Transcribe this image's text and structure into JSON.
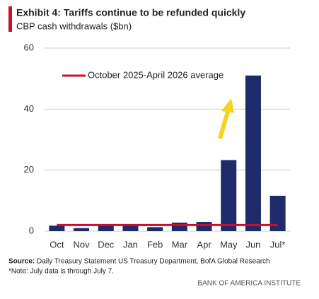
{
  "chart_data": {
    "type": "bar",
    "title": "Exhibit 4: Tariffs continue to be refunded quickly",
    "subtitle": "CBP cash withdrawals ($bn)",
    "categories": [
      "Oct",
      "Nov",
      "Dec",
      "Jan",
      "Feb",
      "Mar",
      "Apr",
      "May",
      "Jun",
      "Jul*"
    ],
    "values": [
      1.8,
      1.0,
      1.8,
      1.8,
      1.3,
      2.8,
      3.0,
      23.3,
      51.0,
      11.6
    ],
    "color": "#1f2a6b",
    "ylim": [
      0,
      60
    ],
    "yticks": [
      0,
      20,
      40,
      60
    ],
    "grid": true,
    "reference_line": {
      "name": "October 2025-April 2026 average",
      "value": 2.0,
      "color": "#c8102e"
    },
    "source_label": "Source:",
    "source": "Daily Treasury Statement US Treasury Department, BofA Global Research",
    "note": "*Note: July data is through July 7.",
    "brand": "BANK OF AMERICA INSTITUTE"
  }
}
